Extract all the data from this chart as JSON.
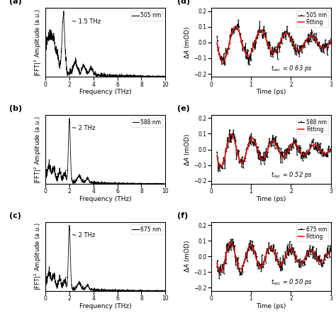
{
  "panels": [
    "a",
    "b",
    "c",
    "d",
    "e",
    "f"
  ],
  "fft_labels": [
    "~ 1.5 THz",
    "~ 2 THz",
    "~ 2 THz"
  ],
  "fft_wavelengths": [
    "505 nm",
    "588 nm",
    "675 nm"
  ],
  "osc_wavelengths": [
    "505 nm",
    "588 nm",
    "675 nm"
  ],
  "tosc": [
    "0.63 ps",
    "0.52 ps",
    "0.50 ps"
  ],
  "fft_peaks": [
    1.5,
    2.0,
    2.0
  ],
  "periods": [
    0.63,
    0.52,
    0.5
  ],
  "background_color": "#ffffff",
  "line_color": "#000000",
  "fit_color": "#ff0000"
}
